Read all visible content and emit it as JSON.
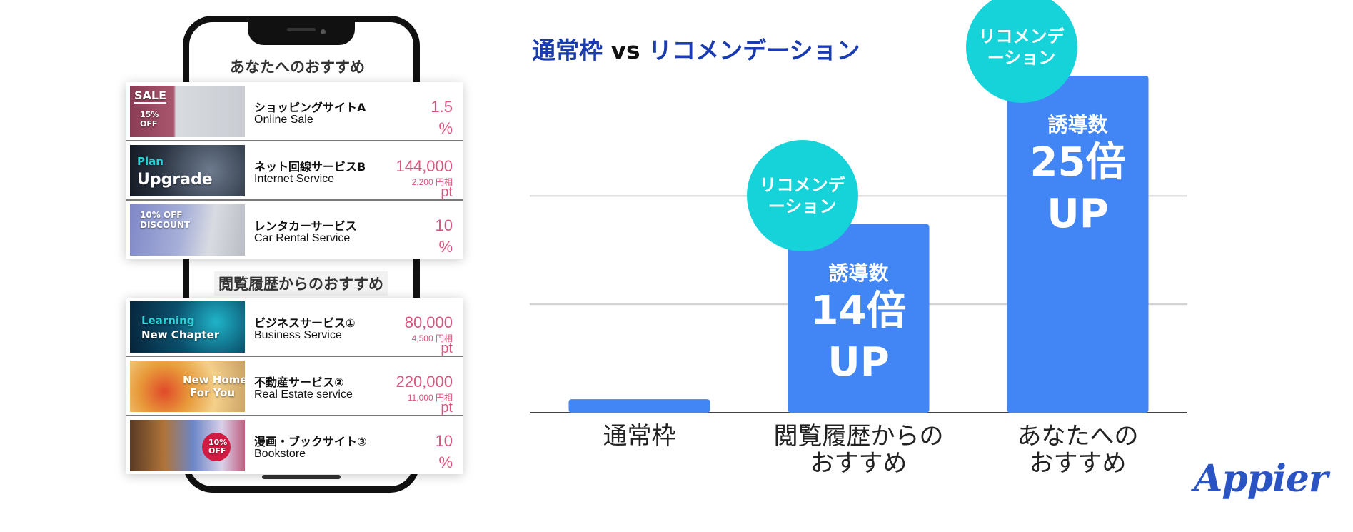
{
  "phone": {
    "section1_title": "あなたへのおすすめ",
    "section2_title": "閲覧履歴からのおすすめ",
    "recommend_items": [
      {
        "name": "ショッピングサイトA",
        "sub": "Online Sale",
        "value": "1.5",
        "unit": "%",
        "thumb_labels": [
          "SALE",
          "15%",
          "OFF"
        ]
      },
      {
        "name": "ネット回線サービスB",
        "sub": "Internet Service",
        "value": "144,000",
        "note": "2,200 円相",
        "unit": "pt",
        "thumb_labels": [
          "Plan",
          "Upgrade"
        ]
      },
      {
        "name": "レンタカーサービス",
        "sub": "Car Rental Service",
        "value": "10",
        "unit": "%",
        "thumb_labels": [
          "10% OFF",
          "DISCOUNT"
        ]
      }
    ],
    "history_items": [
      {
        "name": "ビジネスサービス①",
        "sub": "Business Service",
        "value": "80,000",
        "note": "4,500 円相",
        "unit": "pt",
        "thumb_labels": [
          "Learning",
          "New Chapter"
        ]
      },
      {
        "name": "不動産サービス②",
        "sub": "Real Estate service",
        "value": "220,000",
        "note": "11,000 円相",
        "unit": "pt",
        "thumb_labels": [
          "New Home",
          "For You"
        ]
      },
      {
        "name": "漫画・ブックサイト③",
        "sub": "Bookstore",
        "value": "10",
        "unit": "%",
        "thumb_labels": [
          "10%",
          "OFF"
        ]
      }
    ]
  },
  "chart_data": {
    "type": "bar",
    "title_left": "通常枠",
    "title_vs": "vs",
    "title_right": "リコメンデーション",
    "categories": [
      "通常枠",
      "閲覧履歴からの\nおすすめ",
      "あなたへの\nおすすめ"
    ],
    "values": [
      1,
      14,
      25
    ],
    "ylim": [
      0,
      25
    ],
    "grid": true,
    "bar_labels": [
      null,
      {
        "label": "誘導数",
        "multiplier": "14倍",
        "up": "UP",
        "badge": "リコメンデーション"
      },
      {
        "label": "誘導数",
        "multiplier": "25倍",
        "up": "UP",
        "badge": "リコメンデーション"
      }
    ],
    "colors": {
      "bar": "#4285f4",
      "badge": "#16d3d9",
      "title": "#1a3cb0"
    }
  },
  "logo": "Appier"
}
